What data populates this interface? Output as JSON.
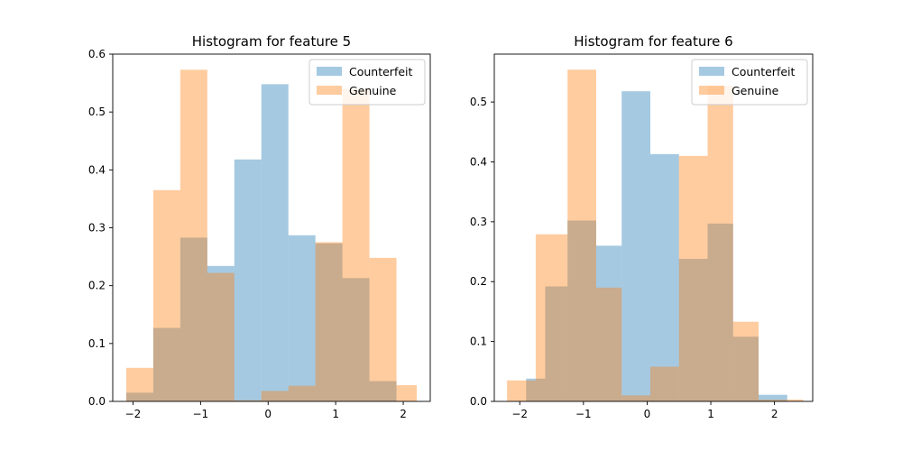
{
  "chart_data": [
    {
      "type": "bar",
      "title": "Histogram for feature 5",
      "xlabel": "",
      "ylabel": "",
      "xlim": [
        -2.3,
        2.4
      ],
      "ylim": [
        0,
        0.6
      ],
      "xticks": [
        -2,
        -1,
        0,
        1,
        2
      ],
      "xtick_labels": [
        "−2",
        "−1",
        "0",
        "1",
        "2"
      ],
      "yticks": [
        0.0,
        0.1,
        0.2,
        0.3,
        0.4,
        0.5,
        0.6
      ],
      "ytick_labels": [
        "0.0",
        "0.1",
        "0.2",
        "0.3",
        "0.4",
        "0.5",
        "0.6"
      ],
      "grid": false,
      "legend": "top-right",
      "series": [
        {
          "name": "Counterfeit",
          "color": "#1f77b4",
          "alpha": 0.4,
          "edges": [
            -2.1,
            -1.7,
            -1.3,
            -0.9,
            -0.5,
            -0.1,
            0.3,
            0.7,
            1.1,
            1.5,
            1.9,
            2.1
          ],
          "values": [
            0.015,
            0.127,
            0.283,
            0.234,
            0.418,
            0.548,
            0.287,
            0.273,
            0.213,
            0.035,
            0.0
          ]
        },
        {
          "name": "Genuine",
          "color": "#ff7f0e",
          "alpha": 0.4,
          "edges": [
            -2.1,
            -1.7,
            -1.3,
            -0.9,
            -0.5,
            -0.1,
            0.3,
            0.7,
            1.1,
            1.5,
            1.9,
            2.2
          ],
          "values": [
            0.058,
            0.365,
            0.573,
            0.222,
            0.002,
            0.018,
            0.027,
            0.275,
            0.54,
            0.248,
            0.028
          ]
        }
      ]
    },
    {
      "type": "bar",
      "title": "Histogram for feature 6",
      "xlabel": "",
      "ylabel": "",
      "xlim": [
        -2.4,
        2.6
      ],
      "ylim": [
        0,
        0.58
      ],
      "xticks": [
        -2,
        -1,
        0,
        1,
        2
      ],
      "xtick_labels": [
        "−2",
        "−1",
        "0",
        "1",
        "2"
      ],
      "yticks": [
        0.0,
        0.1,
        0.2,
        0.3,
        0.4,
        0.5
      ],
      "ytick_labels": [
        "0.0",
        "0.1",
        "0.2",
        "0.3",
        "0.4",
        "0.5"
      ],
      "grid": false,
      "legend": "top-right",
      "series": [
        {
          "name": "Counterfeit",
          "color": "#1f77b4",
          "alpha": 0.4,
          "edges": [
            -1.9,
            -1.6,
            -1.25,
            -0.8,
            -0.4,
            0.05,
            0.5,
            0.95,
            1.35,
            1.75,
            2.2
          ],
          "values": [
            0.038,
            0.192,
            0.302,
            0.26,
            0.518,
            0.413,
            0.238,
            0.297,
            0.108,
            0.011
          ]
        },
        {
          "name": "Genuine",
          "color": "#ff7f0e",
          "alpha": 0.4,
          "edges": [
            -2.2,
            -1.75,
            -1.25,
            -0.8,
            -0.4,
            0.05,
            0.5,
            0.95,
            1.35,
            1.75,
            2.2,
            2.45
          ],
          "values": [
            0.035,
            0.279,
            0.554,
            0.19,
            0.01,
            0.058,
            0.41,
            0.527,
            0.133,
            0.003,
            0.003
          ]
        }
      ]
    }
  ]
}
